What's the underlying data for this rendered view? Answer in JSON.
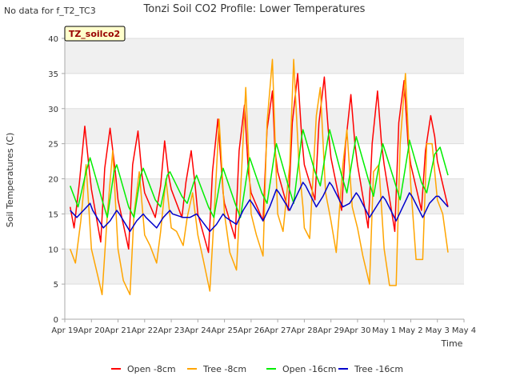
{
  "page": {
    "nodata_text": "No data for f_T2_TC3",
    "badge_text": "TZ_soilco2"
  },
  "chart_data": {
    "type": "line",
    "title": "Tonzi Soil CO2 Profile: Lower Temperatures",
    "xlabel": "Time",
    "ylabel": "Soil Temperatures (C)",
    "ylim": [
      0,
      40
    ],
    "yticks": [
      0,
      5,
      10,
      15,
      20,
      25,
      30,
      35,
      40
    ],
    "xlim": [
      0,
      15
    ],
    "xticks": [
      0,
      1,
      2,
      3,
      4,
      5,
      6,
      7,
      8,
      9,
      10,
      11,
      12,
      13,
      14,
      15
    ],
    "xtick_labels": [
      "Apr 19",
      "Apr 20",
      "Apr 21",
      "Apr 22",
      "Apr 23",
      "Apr 24",
      "Apr 25",
      "Apr 26",
      "Apr 27",
      "Apr 28",
      "Apr 29",
      "Apr 30",
      "May 1",
      "May 2",
      "May 3",
      "May 4"
    ],
    "grid": "horizontal bands",
    "legend_position": "bottom",
    "series": [
      {
        "name": "Open -8cm",
        "color": "#ff0000",
        "x": [
          0.2,
          0.35,
          0.55,
          0.75,
          0.9,
          1.0,
          1.35,
          1.5,
          1.7,
          1.9,
          2.0,
          2.4,
          2.55,
          2.75,
          2.9,
          3.0,
          3.4,
          3.6,
          3.75,
          3.9,
          4.0,
          4.4,
          4.55,
          4.75,
          4.9,
          5.0,
          5.4,
          5.55,
          5.75,
          5.95,
          6.0,
          6.4,
          6.55,
          6.75,
          6.9,
          7.0,
          7.45,
          7.6,
          7.8,
          7.9,
          8.0,
          8.4,
          8.55,
          8.75,
          8.9,
          9.0,
          9.4,
          9.55,
          9.75,
          9.9,
          10.0,
          10.4,
          10.55,
          10.75,
          10.9,
          11.0,
          11.4,
          11.55,
          11.75,
          11.9,
          12.0,
          12.4,
          12.55,
          12.75,
          12.9,
          13.0,
          13.4,
          13.55,
          13.75,
          13.9,
          14.0,
          14.4
        ],
        "y": [
          16.0,
          13.0,
          19.5,
          27.5,
          22.0,
          18.5,
          11.0,
          21.5,
          27.2,
          21.0,
          17.0,
          10.0,
          22.0,
          26.8,
          20.5,
          18.0,
          14.5,
          19.0,
          25.4,
          20.5,
          18.5,
          14.5,
          19.5,
          24.0,
          19.0,
          15.0,
          9.5,
          21.0,
          28.5,
          18.0,
          16.5,
          11.5,
          24.0,
          30.5,
          21.0,
          18.0,
          14.0,
          27.0,
          32.5,
          24.0,
          21.0,
          15.5,
          28.0,
          35.0,
          26.0,
          22.0,
          17.0,
          28.0,
          34.5,
          27.0,
          23.0,
          15.5,
          25.0,
          32.0,
          25.0,
          22.0,
          13.0,
          25.0,
          32.5,
          25.0,
          22.0,
          12.5,
          28.0,
          34.0,
          25.0,
          22.0,
          15.5,
          24.0,
          29.0,
          26.0,
          22.5,
          16.0
        ]
      },
      {
        "name": "Tree -8cm",
        "color": "#ffa500",
        "x": [
          0.2,
          0.4,
          0.6,
          0.8,
          1.0,
          1.25,
          1.4,
          1.6,
          1.8,
          2.0,
          2.2,
          2.45,
          2.6,
          2.8,
          3.0,
          3.2,
          3.45,
          3.6,
          3.8,
          4.0,
          4.2,
          4.45,
          4.6,
          4.8,
          5.0,
          5.2,
          5.45,
          5.6,
          5.8,
          6.0,
          6.2,
          6.45,
          6.6,
          6.8,
          7.0,
          7.2,
          7.45,
          7.6,
          7.8,
          7.95,
          8.0,
          8.2,
          8.45,
          8.6,
          8.8,
          8.95,
          9.0,
          9.2,
          9.45,
          9.6,
          9.8,
          10.0,
          10.2,
          10.45,
          10.6,
          10.8,
          11.0,
          11.2,
          11.45,
          11.6,
          11.8,
          12.0,
          12.2,
          12.45,
          12.6,
          12.8,
          13.0,
          13.2,
          13.45,
          13.6,
          13.8,
          14.0,
          14.2,
          14.4
        ],
        "y": [
          10.0,
          8.0,
          14.0,
          22.0,
          10.0,
          6.0,
          3.5,
          15.0,
          24.0,
          10.0,
          5.5,
          3.5,
          15.0,
          21.0,
          12.0,
          10.5,
          8.0,
          12.5,
          20.0,
          13.0,
          12.5,
          10.5,
          14.5,
          18.0,
          12.0,
          8.5,
          4.0,
          14.0,
          28.5,
          15.0,
          9.5,
          7.0,
          18.0,
          33.0,
          15.0,
          12.0,
          9.0,
          28.0,
          37.0,
          20.0,
          15.0,
          12.5,
          22.0,
          37.0,
          22.0,
          16.0,
          13.0,
          11.5,
          29.0,
          33.0,
          18.0,
          14.0,
          9.5,
          22.0,
          27.0,
          16.0,
          13.0,
          9.0,
          5.0,
          21.0,
          22.0,
          10.0,
          4.8,
          4.8,
          25.0,
          35.0,
          19.0,
          8.5,
          8.5,
          25.0,
          25.0,
          17.0,
          15.0,
          9.5
        ]
      },
      {
        "name": "Open -16cm",
        "color": "#00ee00",
        "x": [
          0.2,
          0.5,
          0.8,
          0.95,
          1.4,
          1.6,
          1.85,
          1.95,
          2.4,
          2.6,
          2.85,
          2.95,
          3.4,
          3.6,
          3.85,
          3.95,
          4.4,
          4.6,
          4.85,
          4.95,
          5.4,
          5.6,
          5.85,
          5.95,
          6.4,
          6.6,
          6.9,
          6.95,
          7.4,
          7.6,
          7.9,
          7.95,
          8.4,
          8.6,
          8.9,
          8.95,
          9.4,
          9.6,
          9.9,
          9.95,
          10.4,
          10.6,
          10.9,
          10.95,
          11.4,
          11.6,
          11.9,
          11.95,
          12.4,
          12.6,
          12.9,
          12.95,
          13.4,
          13.6,
          13.9,
          14.1,
          14.4
        ],
        "y": [
          19.0,
          16.0,
          21.0,
          23.0,
          17.0,
          14.5,
          21.0,
          22.0,
          16.0,
          14.5,
          20.5,
          21.5,
          17.0,
          16.0,
          20.5,
          21.0,
          17.5,
          16.5,
          19.5,
          20.5,
          16.0,
          14.5,
          20.0,
          21.5,
          16.5,
          14.5,
          22.0,
          23.0,
          18.0,
          16.5,
          24.0,
          25.0,
          19.0,
          16.5,
          26.0,
          27.0,
          21.0,
          19.0,
          26.0,
          27.0,
          20.5,
          18.0,
          25.0,
          26.0,
          20.0,
          17.5,
          24.0,
          25.0,
          19.5,
          17.0,
          24.0,
          25.5,
          19.5,
          18.0,
          23.5,
          24.5,
          20.5
        ]
      },
      {
        "name": "Tree -16cm",
        "color": "#0000cc",
        "x": [
          0.2,
          0.45,
          0.7,
          0.95,
          1.05,
          1.45,
          1.7,
          1.95,
          2.05,
          2.45,
          2.7,
          2.95,
          3.05,
          3.45,
          3.7,
          3.95,
          4.05,
          4.45,
          4.7,
          4.95,
          5.05,
          5.45,
          5.7,
          5.95,
          6.05,
          6.45,
          6.7,
          6.95,
          7.05,
          7.45,
          7.7,
          7.95,
          8.05,
          8.45,
          8.7,
          8.95,
          9.05,
          9.45,
          9.7,
          9.95,
          10.05,
          10.45,
          10.7,
          10.95,
          11.05,
          11.45,
          11.7,
          11.95,
          12.05,
          12.45,
          12.7,
          12.95,
          13.05,
          13.45,
          13.7,
          13.95,
          14.05,
          14.4
        ],
        "y": [
          15.5,
          14.5,
          15.5,
          16.5,
          15.5,
          13.0,
          14.0,
          15.5,
          15.0,
          12.5,
          14.0,
          15.0,
          14.5,
          13.0,
          14.5,
          15.5,
          15.0,
          14.5,
          14.5,
          15.0,
          14.5,
          12.5,
          13.5,
          15.0,
          14.5,
          13.5,
          15.5,
          17.0,
          16.5,
          14.0,
          16.0,
          18.5,
          18.0,
          15.5,
          17.5,
          19.5,
          19.0,
          16.0,
          17.5,
          19.5,
          19.0,
          16.0,
          16.5,
          18.0,
          17.5,
          14.5,
          16.0,
          17.5,
          17.0,
          14.0,
          16.0,
          18.0,
          17.5,
          14.5,
          16.5,
          17.5,
          17.5,
          16.0
        ]
      }
    ]
  }
}
